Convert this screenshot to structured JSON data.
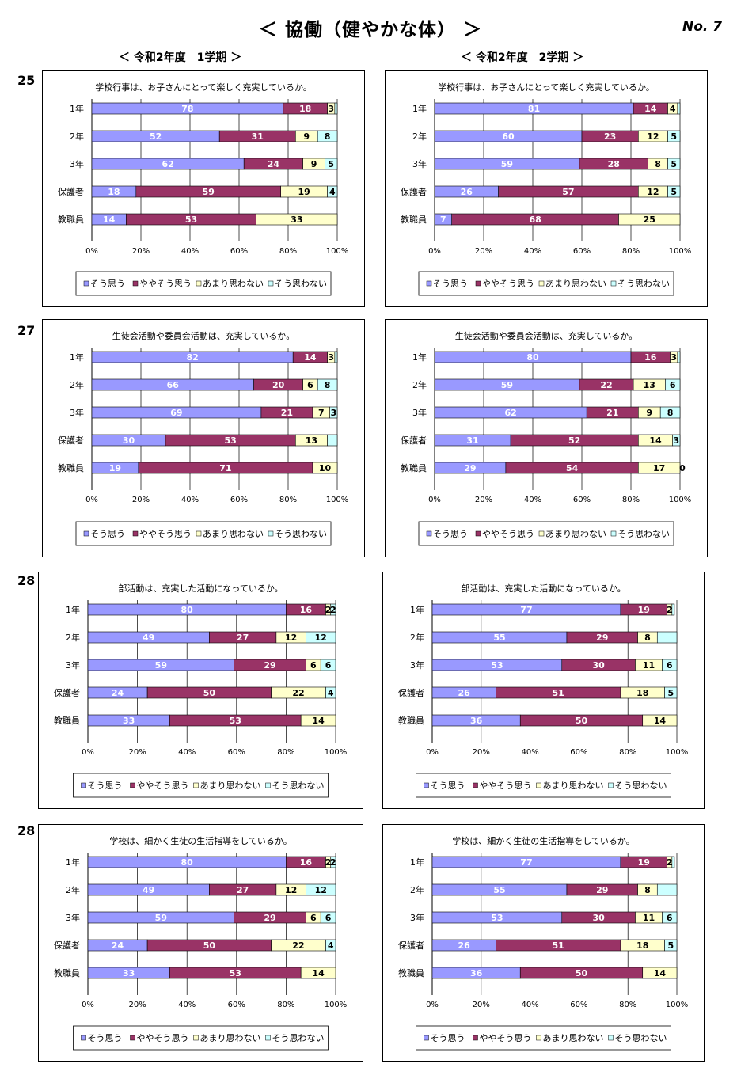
{
  "page": {
    "title": "＜ 協働（健やかな体） ＞",
    "number": "No. 7",
    "term1": "＜ 令和2年度　1学期 ＞",
    "term2": "＜ 令和2年度　2学期 ＞"
  },
  "colors": {
    "series": [
      "#9999ff",
      "#993366",
      "#ffffcc",
      "#ccffff"
    ],
    "grid": "#000000"
  },
  "rows": [
    {
      "number": "25"
    },
    {
      "number": "27"
    },
    {
      "number": "28"
    },
    {
      "number": "28"
    }
  ],
  "chart_data": [
    {
      "type": "bar",
      "orientation": "horizontal",
      "stacked": true,
      "percent": true,
      "title": "学校行事は、お子さんにとって楽しく充実しているか。",
      "categories": [
        "1年",
        "2年",
        "3年",
        "保護者",
        "教職員"
      ],
      "series": [
        {
          "name": "そう思う",
          "values": [
            78,
            52,
            62,
            18,
            14
          ]
        },
        {
          "name": "ややそう思う",
          "values": [
            18,
            31,
            24,
            59,
            53
          ]
        },
        {
          "name": "あまり思わない",
          "values": [
            3,
            9,
            9,
            19,
            33
          ]
        },
        {
          "name": "そう思わない",
          "values": [
            1,
            8,
            5,
            4,
            0
          ]
        }
      ],
      "labels": [
        [
          "78",
          "18",
          "3",
          ""
        ],
        [
          "52",
          "31",
          "9",
          "8"
        ],
        [
          "62",
          "24",
          "9",
          "5"
        ],
        [
          "18",
          "59",
          "19",
          "4"
        ],
        [
          "14",
          "53",
          "33",
          ""
        ]
      ],
      "xlim": [
        0,
        100
      ],
      "xticks": [
        "0%",
        "20%",
        "40%",
        "60%",
        "80%",
        "100%"
      ],
      "legend": "bottom",
      "grid": true
    },
    {
      "type": "bar",
      "orientation": "horizontal",
      "stacked": true,
      "percent": true,
      "title": "学校行事は、お子さんにとって楽しく充実しているか。",
      "categories": [
        "1年",
        "2年",
        "3年",
        "保護者",
        "教職員"
      ],
      "series": [
        {
          "name": "そう思う",
          "values": [
            81,
            60,
            59,
            26,
            7
          ]
        },
        {
          "name": "ややそう思う",
          "values": [
            14,
            23,
            28,
            57,
            68
          ]
        },
        {
          "name": "あまり思わない",
          "values": [
            4,
            12,
            8,
            12,
            25
          ]
        },
        {
          "name": "そう思わない",
          "values": [
            1,
            5,
            5,
            5,
            0
          ]
        }
      ],
      "labels": [
        [
          "81",
          "14",
          "4",
          ""
        ],
        [
          "60",
          "23",
          "12",
          "5"
        ],
        [
          "59",
          "28",
          "8",
          "5"
        ],
        [
          "26",
          "57",
          "12",
          "5"
        ],
        [
          "7",
          "68",
          "25",
          ""
        ]
      ],
      "xlim": [
        0,
        100
      ],
      "xticks": [
        "0%",
        "20%",
        "40%",
        "60%",
        "80%",
        "100%"
      ],
      "legend": "bottom",
      "grid": true
    },
    {
      "type": "bar",
      "orientation": "horizontal",
      "stacked": true,
      "percent": true,
      "title": "生徒会活動や委員会活動は、充実しているか。",
      "categories": [
        "1年",
        "2年",
        "3年",
        "保護者",
        "教職員"
      ],
      "series": [
        {
          "name": "そう思う",
          "values": [
            82,
            66,
            69,
            30,
            19
          ]
        },
        {
          "name": "ややそう思う",
          "values": [
            14,
            20,
            21,
            53,
            71
          ]
        },
        {
          "name": "あまり思わない",
          "values": [
            3,
            6,
            7,
            13,
            10
          ]
        },
        {
          "name": "そう思わない",
          "values": [
            1,
            8,
            3,
            4,
            0
          ]
        }
      ],
      "labels": [
        [
          "82",
          "14",
          "3",
          ""
        ],
        [
          "66",
          "20",
          "6",
          "8"
        ],
        [
          "69",
          "21",
          "7",
          "3"
        ],
        [
          "30",
          "53",
          "13",
          ""
        ],
        [
          "19",
          "71",
          "10",
          ""
        ]
      ],
      "xlim": [
        0,
        100
      ],
      "xticks": [
        "0%",
        "20%",
        "40%",
        "60%",
        "80%",
        "100%"
      ],
      "legend": "bottom",
      "grid": true
    },
    {
      "type": "bar",
      "orientation": "horizontal",
      "stacked": true,
      "percent": true,
      "title": "生徒会活動や委員会活動は、充実しているか。",
      "categories": [
        "1年",
        "2年",
        "3年",
        "保護者",
        "教職員"
      ],
      "series": [
        {
          "name": "そう思う",
          "values": [
            80,
            59,
            62,
            31,
            29
          ]
        },
        {
          "name": "ややそう思う",
          "values": [
            16,
            22,
            21,
            52,
            54
          ]
        },
        {
          "name": "あまり思わない",
          "values": [
            3,
            13,
            9,
            14,
            17
          ]
        },
        {
          "name": "そう思わない",
          "values": [
            1,
            6,
            8,
            3,
            0
          ]
        }
      ],
      "labels": [
        [
          "80",
          "16",
          "3",
          ""
        ],
        [
          "59",
          "22",
          "13",
          "6"
        ],
        [
          "62",
          "21",
          "9",
          "8"
        ],
        [
          "31",
          "52",
          "14",
          "3"
        ],
        [
          "29",
          "54",
          "17",
          "0"
        ]
      ],
      "xlim": [
        0,
        100
      ],
      "xticks": [
        "0%",
        "20%",
        "40%",
        "60%",
        "80%",
        "100%"
      ],
      "legend": "bottom",
      "grid": true
    },
    {
      "type": "bar",
      "orientation": "horizontal",
      "stacked": true,
      "percent": true,
      "title": "部活動は、充実した活動になっているか。",
      "categories": [
        "1年",
        "2年",
        "3年",
        "保護者",
        "教職員"
      ],
      "series": [
        {
          "name": "そう思う",
          "values": [
            80,
            49,
            59,
            24,
            33
          ]
        },
        {
          "name": "ややそう思う",
          "values": [
            16,
            27,
            29,
            50,
            53
          ]
        },
        {
          "name": "あまり思わない",
          "values": [
            2,
            12,
            6,
            22,
            14
          ]
        },
        {
          "name": "そう思わない",
          "values": [
            2,
            12,
            6,
            4,
            0
          ]
        }
      ],
      "labels": [
        [
          "80",
          "16",
          "2",
          "2"
        ],
        [
          "49",
          "27",
          "12",
          "12"
        ],
        [
          "59",
          "29",
          "6",
          "6"
        ],
        [
          "24",
          "50",
          "22",
          "4"
        ],
        [
          "33",
          "53",
          "14",
          ""
        ]
      ],
      "xlim": [
        0,
        100
      ],
      "xticks": [
        "0%",
        "20%",
        "40%",
        "60%",
        "80%",
        "100%"
      ],
      "legend": "bottom",
      "grid": true
    },
    {
      "type": "bar",
      "orientation": "horizontal",
      "stacked": true,
      "percent": true,
      "title": "部活動は、充実した活動になっているか。",
      "categories": [
        "1年",
        "2年",
        "3年",
        "保護者",
        "教職員"
      ],
      "series": [
        {
          "name": "そう思う",
          "values": [
            77,
            55,
            53,
            26,
            36
          ]
        },
        {
          "name": "ややそう思う",
          "values": [
            19,
            29,
            30,
            51,
            50
          ]
        },
        {
          "name": "あまり思わない",
          "values": [
            2,
            8,
            11,
            18,
            14
          ]
        },
        {
          "name": "そう思わない",
          "values": [
            1,
            8,
            6,
            5,
            0
          ]
        }
      ],
      "labels": [
        [
          "77",
          "19",
          "2",
          ""
        ],
        [
          "55",
          "29",
          "8",
          ""
        ],
        [
          "53",
          "30",
          "11",
          "6"
        ],
        [
          "26",
          "51",
          "18",
          "5"
        ],
        [
          "36",
          "50",
          "14",
          ""
        ]
      ],
      "xlim": [
        0,
        100
      ],
      "xticks": [
        "0%",
        "20%",
        "40%",
        "60%",
        "80%",
        "100%"
      ],
      "legend": "bottom",
      "grid": true
    },
    {
      "type": "bar",
      "orientation": "horizontal",
      "stacked": true,
      "percent": true,
      "title": "学校は、細かく生徒の生活指導をしているか。",
      "categories": [
        "1年",
        "2年",
        "3年",
        "保護者",
        "教職員"
      ],
      "series": [
        {
          "name": "そう思う",
          "values": [
            80,
            49,
            59,
            24,
            33
          ]
        },
        {
          "name": "ややそう思う",
          "values": [
            16,
            27,
            29,
            50,
            53
          ]
        },
        {
          "name": "あまり思わない",
          "values": [
            2,
            12,
            6,
            22,
            14
          ]
        },
        {
          "name": "そう思わない",
          "values": [
            2,
            12,
            6,
            4,
            0
          ]
        }
      ],
      "labels": [
        [
          "80",
          "16",
          "2",
          "2"
        ],
        [
          "49",
          "27",
          "12",
          "12"
        ],
        [
          "59",
          "29",
          "6",
          "6"
        ],
        [
          "24",
          "50",
          "22",
          "4"
        ],
        [
          "33",
          "53",
          "14",
          ""
        ]
      ],
      "xlim": [
        0,
        100
      ],
      "xticks": [
        "0%",
        "20%",
        "40%",
        "60%",
        "80%",
        "100%"
      ],
      "legend": "bottom",
      "grid": true
    },
    {
      "type": "bar",
      "orientation": "horizontal",
      "stacked": true,
      "percent": true,
      "title": "学校は、細かく生徒の生活指導をしているか。",
      "categories": [
        "1年",
        "2年",
        "3年",
        "保護者",
        "教職員"
      ],
      "series": [
        {
          "name": "そう思う",
          "values": [
            77,
            55,
            53,
            26,
            36
          ]
        },
        {
          "name": "ややそう思う",
          "values": [
            19,
            29,
            30,
            51,
            50
          ]
        },
        {
          "name": "あまり思わない",
          "values": [
            2,
            8,
            11,
            18,
            14
          ]
        },
        {
          "name": "そう思わない",
          "values": [
            1,
            8,
            6,
            5,
            0
          ]
        }
      ],
      "labels": [
        [
          "77",
          "19",
          "2",
          ""
        ],
        [
          "55",
          "29",
          "8",
          ""
        ],
        [
          "53",
          "30",
          "11",
          "6"
        ],
        [
          "26",
          "51",
          "18",
          "5"
        ],
        [
          "36",
          "50",
          "14",
          ""
        ]
      ],
      "xlim": [
        0,
        100
      ],
      "xticks": [
        "0%",
        "20%",
        "40%",
        "60%",
        "80%",
        "100%"
      ],
      "legend": "bottom",
      "grid": true
    }
  ]
}
